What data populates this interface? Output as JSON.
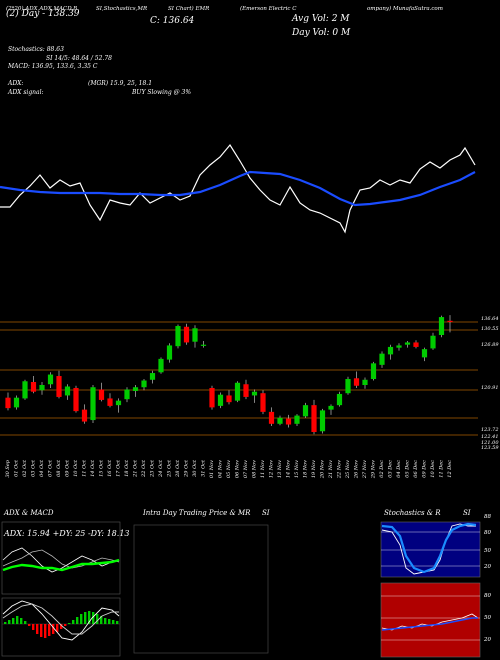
{
  "header": {
    "line1": "(2*20) ADX,ADX,MACD,B",
    "line1b": "SI,Stochastics,MR",
    "line1c": "SI Chart) EMR",
    "line1d": "(Emerson Electric C",
    "line1e": "ompany) MunafaSutra.com",
    "open": "O: 136.8",
    "high": "H: 137.56",
    "low": "L: 135.25",
    "close": "C: 136.64",
    "avg_vol": "Avg Vol: 2  M",
    "day_vol": "Day Vol: 0  M",
    "day_change": "(2) Day  -  138.39"
  },
  "indicators": {
    "stochastics": "Stochastics: 88.63",
    "rsi": "SI 14/5: 48.64  /  52.78",
    "macd": "MACD: 136.95,  133.6,  3.35 C",
    "adx": "ADX:",
    "adx_vals": "(MGR) 15.9,  25,  18.1",
    "adx_signal": "ADX  signal:",
    "signal_text": "BUY Slowing @ 3%"
  },
  "price_axis": [
    "136.64",
    "130.55",
    "126.89",
    "120.91",
    "123.72",
    "122.41",
    "121.00",
    "123.59"
  ],
  "dates": [
    "30 Sep",
    "01 Oct",
    "02 Oct",
    "03 Oct",
    "04 Oct",
    "07 Oct",
    "08 Oct",
    "09 Oct",
    "10 Oct",
    "11 Oct",
    "14 Oct",
    "15 Oct",
    "16 Oct",
    "17 Oct",
    "18 Oct",
    "21 Oct",
    "22 Oct",
    "23 Oct",
    "24 Oct",
    "25 Oct",
    "28 Oct",
    "29 Oct",
    "30 Oct",
    "31 Oct",
    "01 Nov",
    "04 Nov",
    "05 Nov",
    "06 Nov",
    "07 Nov",
    "08 Nov",
    "11 Nov",
    "12 Nov",
    "13 Nov",
    "14 Nov",
    "15 Nov",
    "18 Nov",
    "19 Nov",
    "20 Nov",
    "21 Nov",
    "22 Nov",
    "25 Nov",
    "26 Nov",
    "27 Nov",
    "29 Nov",
    "02 Dec",
    "03 Dec",
    "04 Dec",
    "05 Dec",
    "06 Dec",
    "09 Dec",
    "10 Dec",
    "11 Dec",
    "12 Dec"
  ],
  "panels": {
    "adx_title": "ADX  & MACD",
    "adx_readout": "ADX: 15.94  +DY: 25  -DY: 18.13",
    "intraday_title": "Intra  Day Trading Price  & MR",
    "intraday_si": "SI",
    "stoch_title": "Stochastics & R",
    "stoch_si": "SI",
    "stoch_val": "88",
    "stoch_levels": [
      "80",
      "50",
      "20"
    ],
    "rsi_levels": [
      "80",
      "50",
      "20"
    ],
    "rsi_val": "50"
  },
  "chart_data": {
    "type": "candlestick",
    "ohlc": [
      [
        126.5,
        127.2,
        124.8,
        125.1
      ],
      [
        125.2,
        126.8,
        124.9,
        126.5
      ],
      [
        126.4,
        128.9,
        126.2,
        128.7
      ],
      [
        128.6,
        129.4,
        127.1,
        127.3
      ],
      [
        127.5,
        128.6,
        126.9,
        128.2
      ],
      [
        128.3,
        129.9,
        127.8,
        129.6
      ],
      [
        129.4,
        130.1,
        126.4,
        126.6
      ],
      [
        126.8,
        128.3,
        126.2,
        128.0
      ],
      [
        127.8,
        128.1,
        124.5,
        124.7
      ],
      [
        124.9,
        125.6,
        123.0,
        123.3
      ],
      [
        123.5,
        128.2,
        123.1,
        127.9
      ],
      [
        127.6,
        128.5,
        126.0,
        126.2
      ],
      [
        126.4,
        127.1,
        125.2,
        125.4
      ],
      [
        125.5,
        126.4,
        124.5,
        126.1
      ],
      [
        126.3,
        127.9,
        125.9,
        127.6
      ],
      [
        127.4,
        128.2,
        126.6,
        127.9
      ],
      [
        127.9,
        129.0,
        127.5,
        128.8
      ],
      [
        128.9,
        130.1,
        128.4,
        129.8
      ],
      [
        129.9,
        131.9,
        129.7,
        131.7
      ],
      [
        131.6,
        133.8,
        131.2,
        133.5
      ],
      [
        133.4,
        136.3,
        133.1,
        136.1
      ],
      [
        136.0,
        136.4,
        133.6,
        133.9
      ],
      [
        134.0,
        136.2,
        133.2,
        135.8
      ],
      [
        133.5,
        134.1,
        133.2,
        133.6
      ],
      [
        127.8,
        128.1,
        124.9,
        125.2
      ],
      [
        125.4,
        127.2,
        125.1,
        126.9
      ],
      [
        126.8,
        127.5,
        125.6,
        125.9
      ],
      [
        126.1,
        128.7,
        125.9,
        128.5
      ],
      [
        128.3,
        128.9,
        126.3,
        126.6
      ],
      [
        126.8,
        127.6,
        125.8,
        127.3
      ],
      [
        127.1,
        127.5,
        124.3,
        124.6
      ],
      [
        124.6,
        125.2,
        122.7,
        123.0
      ],
      [
        123.0,
        124.1,
        122.8,
        123.8
      ],
      [
        123.7,
        124.2,
        122.5,
        122.9
      ],
      [
        123.0,
        124.3,
        122.7,
        124.1
      ],
      [
        124.0,
        125.8,
        123.8,
        125.5
      ],
      [
        125.5,
        126.2,
        121.6,
        121.9
      ],
      [
        122.0,
        125.0,
        121.7,
        124.8
      ],
      [
        124.9,
        125.6,
        124.2,
        125.4
      ],
      [
        125.5,
        127.3,
        125.3,
        127.0
      ],
      [
        127.1,
        129.3,
        126.9,
        129.0
      ],
      [
        129.1,
        130.0,
        127.8,
        128.1
      ],
      [
        128.2,
        129.2,
        127.7,
        128.9
      ],
      [
        129.0,
        131.3,
        128.8,
        131.1
      ],
      [
        130.9,
        132.7,
        130.5,
        132.4
      ],
      [
        132.3,
        133.6,
        131.6,
        133.3
      ],
      [
        133.2,
        133.8,
        132.8,
        133.5
      ],
      [
        133.6,
        134.1,
        133.2,
        133.9
      ],
      [
        133.9,
        134.2,
        133.1,
        133.3
      ],
      [
        131.9,
        133.2,
        131.4,
        133.0
      ],
      [
        133.1,
        135.2,
        132.9,
        134.8
      ],
      [
        134.9,
        137.5,
        134.6,
        137.3
      ],
      [
        136.8,
        137.56,
        135.25,
        136.64
      ]
    ]
  },
  "colors": {
    "background": "#000000",
    "up": "#00cc00",
    "down": "#ff0000",
    "ema": "#1a4cff",
    "grid_orange": "#ff8c00",
    "rsi_panel": "#b00000",
    "stoch_panel": "#000080"
  }
}
